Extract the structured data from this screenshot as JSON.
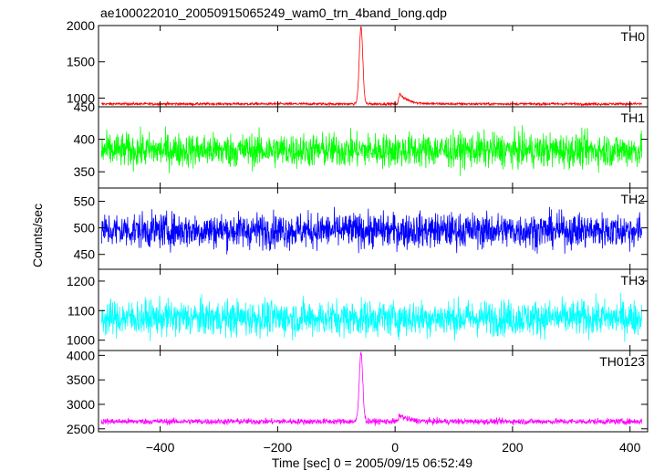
{
  "title": "ae100022010_20050915065249_wam0_trn_4band_long.qdp",
  "xlabel": "Time [sec] 0 = 2005/09/15 06:52:49",
  "ylabel": "Counts/sec",
  "chart_data": {
    "type": "line",
    "x_range": [
      -505,
      430
    ],
    "x_ticks": [
      -400,
      -200,
      0,
      200,
      400
    ],
    "x_tick_labels": [
      "−400",
      "−200",
      "0",
      "200",
      "400"
    ],
    "panels": [
      {
        "name": "TH0",
        "color": "#ff0000",
        "ylim": [
          880,
          2000
        ],
        "yticks": [
          1000,
          1500,
          2000
        ],
        "baseline": 920,
        "noise": 16,
        "features": [
          {
            "x": -58,
            "peak": 1980,
            "width": 3
          },
          {
            "x": 8,
            "peak": 1060,
            "width": 14
          }
        ]
      },
      {
        "name": "TH1",
        "color": "#00ff00",
        "ylim": [
          325,
          450
        ],
        "yticks": [
          350,
          400,
          450
        ],
        "baseline": 383,
        "noise": 24,
        "features": []
      },
      {
        "name": "TH2",
        "color": "#0000ff",
        "ylim": [
          422,
          575
        ],
        "yticks": [
          450,
          500,
          550
        ],
        "baseline": 495,
        "noise": 30,
        "features": []
      },
      {
        "name": "TH3",
        "color": "#00ffff",
        "ylim": [
          965,
          1240
        ],
        "yticks": [
          1000,
          1100,
          1200
        ],
        "baseline": 1075,
        "noise": 55,
        "features": []
      },
      {
        "name": "TH0123",
        "color": "#ff00ff",
        "ylim": [
          2440,
          4100
        ],
        "yticks": [
          2500,
          3000,
          3500,
          4000
        ],
        "baseline": 2650,
        "noise": 55,
        "features": [
          {
            "x": -58,
            "peak": 4050,
            "width": 3
          },
          {
            "x": 8,
            "peak": 2780,
            "width": 14
          }
        ]
      }
    ]
  }
}
